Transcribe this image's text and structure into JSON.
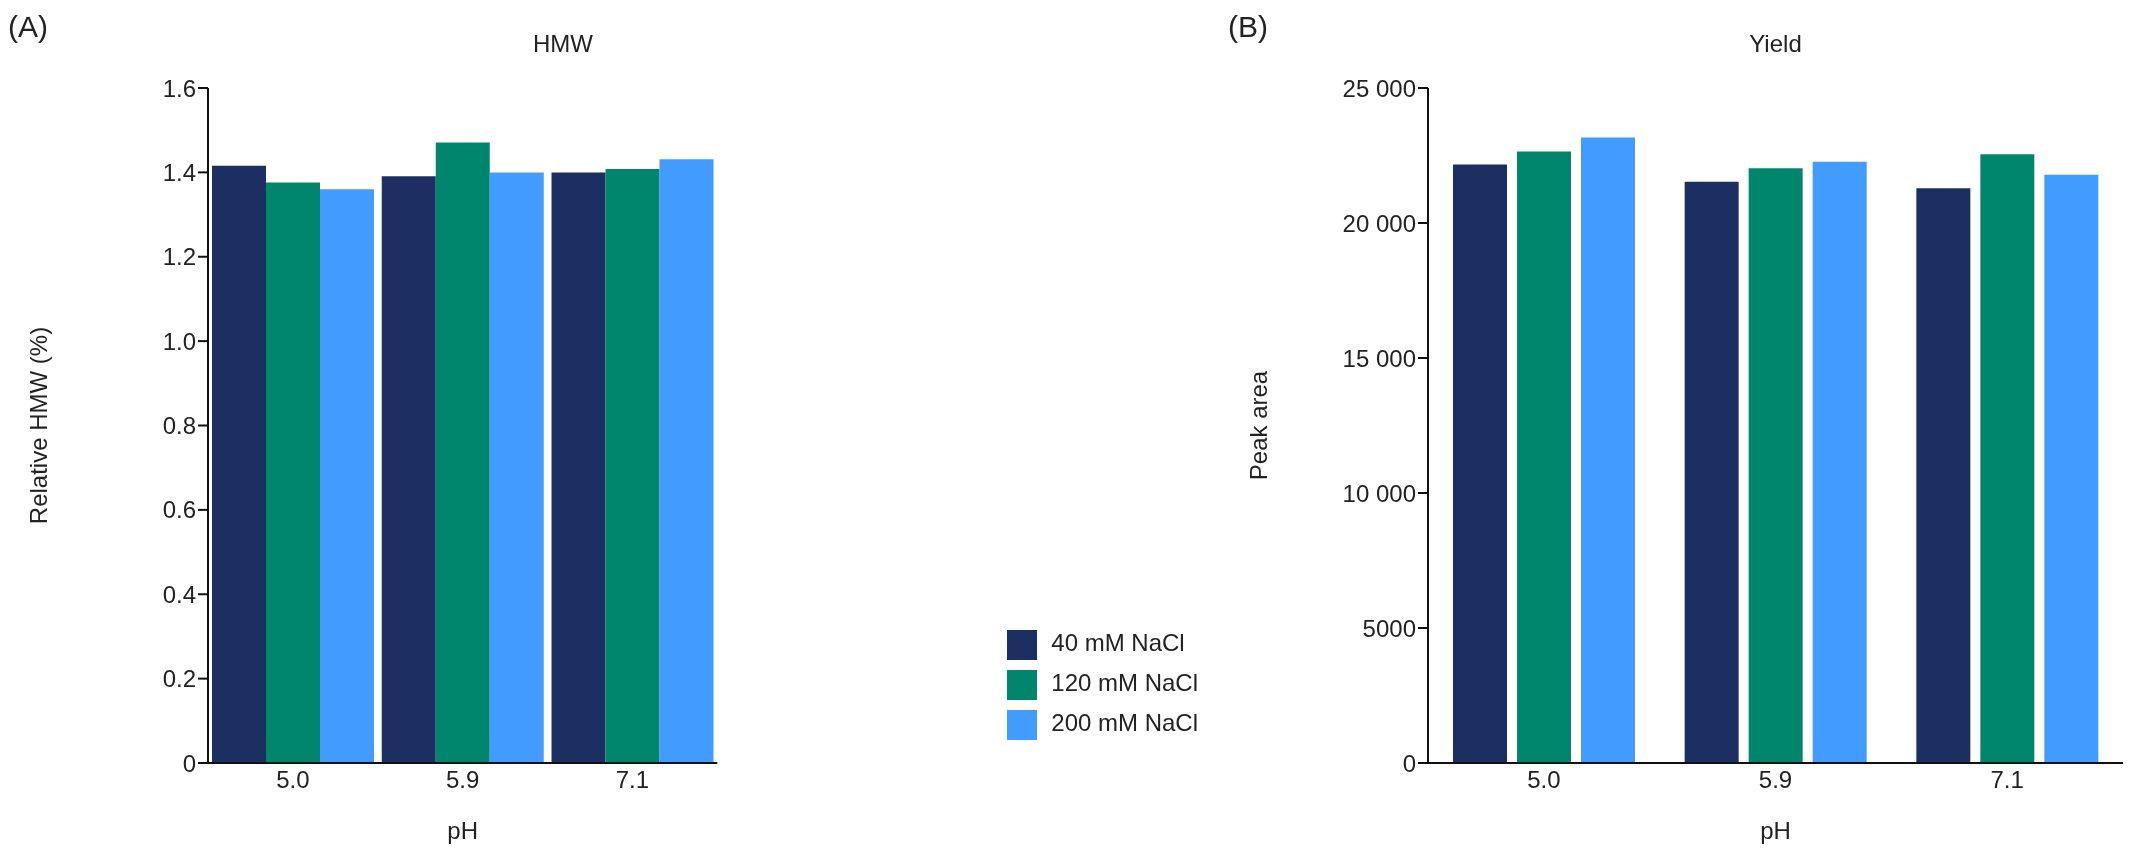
{
  "chart_data": [
    {
      "type": "bar",
      "title": "HMW",
      "xlabel": "pH",
      "ylabel": "Relative HMW (%)",
      "annotations": [
        "(A)"
      ],
      "categories": [
        "5.0",
        "5.9",
        "7.1"
      ],
      "series": [
        {
          "name": "40 mM NaCl",
          "color": "#1b2f63",
          "values": [
            1.416,
            1.391,
            1.4
          ]
        },
        {
          "name": "120 mM NaCl",
          "color": "#00866c",
          "values": [
            1.376,
            1.471,
            1.408
          ]
        },
        {
          "name": "200 mM NaCl",
          "color": "#429bff",
          "values": [
            1.36,
            1.4,
            1.431
          ]
        }
      ],
      "ylim": [
        0,
        1.6
      ],
      "yticks": [
        0,
        0.2,
        0.4,
        0.6,
        0.8,
        {
          "value": 1.0,
          "label": "1.0"
        },
        1.2,
        1.4,
        1.6
      ],
      "grid": false,
      "legend": "bottom right"
    },
    {
      "type": "bar",
      "title": "Yield",
      "xlabel": "pH",
      "ylabel": "Peak area",
      "annotations": [
        "(B)"
      ],
      "categories": [
        "5.0",
        "5.9",
        "7.1"
      ],
      "series": [
        {
          "color": "#1b2f63",
          "values": [
            22170,
            21530,
            21290
          ]
        },
        {
          "color": "#00866c",
          "values": [
            22650,
            22030,
            22550
          ]
        },
        {
          "color": "#429bff",
          "values": [
            23170,
            22270,
            21790
          ]
        }
      ],
      "ylim": [
        0,
        25000
      ],
      "yticks": [
        0,
        5000,
        {
          "value": 10000,
          "label": "10 000"
        },
        {
          "value": 15000,
          "label": "15 000"
        },
        {
          "value": 20000,
          "label": "20 000"
        },
        {
          "value": 25000,
          "label": "25 000"
        }
      ],
      "grid": false
    }
  ]
}
